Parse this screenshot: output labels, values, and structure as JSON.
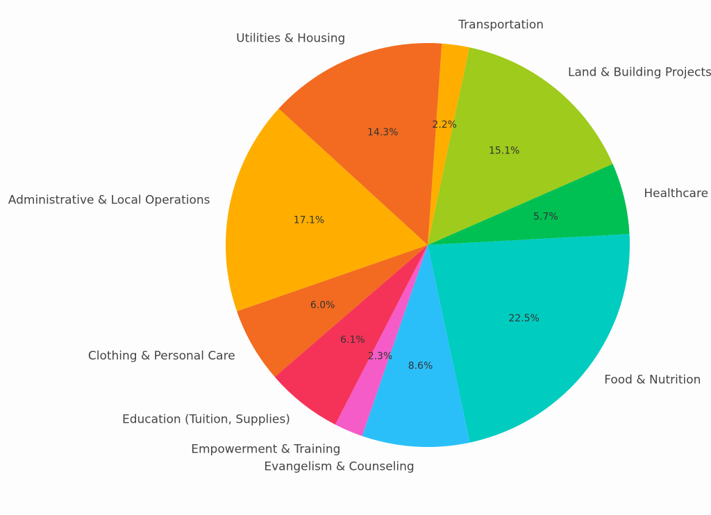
{
  "chart_data": {
    "type": "pie",
    "title": "",
    "slices": [
      {
        "label": "Transportation",
        "value": 2.2,
        "pct_text": "2.2%",
        "color": "#FFAE00"
      },
      {
        "label": "Land & Building Projects",
        "value": 15.1,
        "pct_text": "15.1%",
        "color": "#9ECB1C"
      },
      {
        "label": "Healthcare",
        "value": 5.7,
        "pct_text": "5.7%",
        "color": "#00C053"
      },
      {
        "label": "Food & Nutrition",
        "value": 22.5,
        "pct_text": "22.5%",
        "color": "#00CCC0"
      },
      {
        "label": "Evangelism & Counseling",
        "value": 8.6,
        "pct_text": "8.6%",
        "color": "#2BBFF9"
      },
      {
        "label": "Empowerment & Training",
        "value": 2.3,
        "pct_text": "2.3%",
        "color": "#F55CC8"
      },
      {
        "label": "Education (Tuition, Supplies)",
        "value": 6.1,
        "pct_text": "6.1%",
        "color": "#F53359"
      },
      {
        "label": "Clothing & Personal Care",
        "value": 6.0,
        "pct_text": "6.0%",
        "color": "#F26B21"
      },
      {
        "label": "Administrative & Local Operations",
        "value": 17.1,
        "pct_text": "17.1%",
        "color": "#FFAE00"
      },
      {
        "label": "Utilities & Housing",
        "value": 14.3,
        "pct_text": "14.3%",
        "color": "#F26B21"
      }
    ]
  }
}
